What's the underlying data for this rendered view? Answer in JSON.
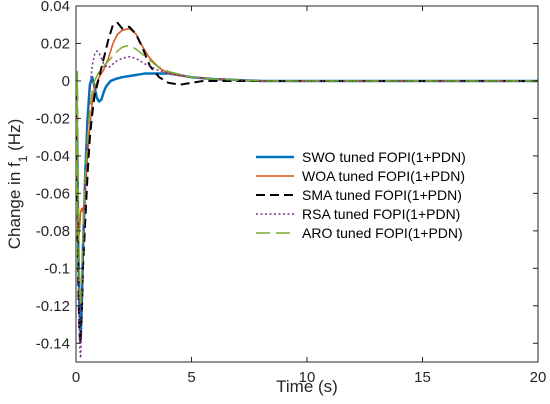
{
  "chart_data": {
    "type": "line",
    "title": "",
    "xlabel": "Time (s)",
    "ylabel_main": "Change in f",
    "ylabel_sub": "1",
    "ylabel_unit": " (Hz)",
    "xlim": [
      0,
      20
    ],
    "ylim": [
      -0.15,
      0.04
    ],
    "xticks": [
      0,
      5,
      10,
      15,
      20
    ],
    "xtick_labels": [
      "0",
      "5",
      "10",
      "15",
      "20"
    ],
    "yticks": [
      0.04,
      0.02,
      0,
      -0.02,
      -0.04,
      -0.06,
      -0.08,
      -0.1,
      -0.12,
      -0.14
    ],
    "ytick_labels": [
      "0.04",
      "0.02",
      "0",
      "-0.02",
      "-0.04",
      "-0.06",
      "-0.08",
      "-0.1",
      "-0.12",
      "-0.14"
    ],
    "grid": false,
    "legend_position": "right",
    "series": [
      {
        "name": "SWO tuned FOPI(1+PDN)",
        "color": "#0072BD",
        "dash": "solid",
        "width": 2.5,
        "x": [
          0,
          0.05,
          0.1,
          0.15,
          0.2,
          0.25,
          0.3,
          0.4,
          0.5,
          0.6,
          0.7,
          0.8,
          0.9,
          1.0,
          1.1,
          1.2,
          1.3,
          1.5,
          1.7,
          2.0,
          2.5,
          3.0,
          4.0,
          5.0,
          6.0,
          8.0,
          10,
          15,
          20
        ],
        "y": [
          0,
          -0.03,
          -0.09,
          -0.12,
          -0.135,
          -0.12,
          -0.09,
          -0.05,
          -0.02,
          -0.002,
          0.002,
          -0.003,
          -0.009,
          -0.011,
          -0.01,
          -0.006,
          -0.003,
          0.0,
          0.001,
          0.002,
          0.003,
          0.004,
          0.004,
          0.002,
          0.001,
          0.0,
          0.0,
          0.0,
          0.0
        ]
      },
      {
        "name": "WOA tuned FOPI(1+PDN)",
        "color": "#D95319",
        "dash": "solid",
        "width": 1.5,
        "x": [
          0,
          0.05,
          0.1,
          0.15,
          0.2,
          0.25,
          0.3,
          0.4,
          0.5,
          0.6,
          0.7,
          0.8,
          1.0,
          1.2,
          1.4,
          1.6,
          1.8,
          2.0,
          2.3,
          2.6,
          2.9,
          3.2,
          3.6,
          4.0,
          5.0,
          6.0,
          8.0,
          10,
          15,
          20
        ],
        "y": [
          0,
          -0.05,
          -0.085,
          -0.08,
          -0.07,
          -0.068,
          -0.07,
          -0.06,
          -0.04,
          -0.025,
          -0.012,
          -0.004,
          0.002,
          0.006,
          0.012,
          0.02,
          0.025,
          0.027,
          0.028,
          0.025,
          0.018,
          0.012,
          0.007,
          0.004,
          0.002,
          0.001,
          0.0,
          0.0,
          0.0,
          0.0
        ]
      },
      {
        "name": "SMA tuned FOPI(1+PDN)",
        "color": "#000000",
        "dash": "dash",
        "width": 2,
        "x": [
          0,
          0.05,
          0.1,
          0.15,
          0.2,
          0.25,
          0.3,
          0.4,
          0.5,
          0.6,
          0.7,
          0.8,
          1.0,
          1.2,
          1.4,
          1.6,
          1.8,
          2.0,
          2.3,
          2.6,
          2.9,
          3.2,
          3.6,
          4.0,
          4.5,
          5.0,
          5.5,
          6.0,
          8.0,
          10,
          15,
          20
        ],
        "y": [
          0,
          -0.06,
          -0.11,
          -0.135,
          -0.14,
          -0.125,
          -0.1,
          -0.075,
          -0.05,
          -0.03,
          -0.018,
          -0.008,
          0.002,
          0.012,
          0.022,
          0.03,
          0.031,
          0.028,
          0.029,
          0.025,
          0.017,
          0.008,
          0.002,
          -0.001,
          -0.002,
          -0.001,
          0.0,
          0.0,
          0.0,
          0.0,
          0.0,
          0.0
        ]
      },
      {
        "name": "RSA tuned FOPI(1+PDN)",
        "color": "#7E2F8E",
        "dash": "dot",
        "width": 1.5,
        "x": [
          0,
          0.05,
          0.1,
          0.15,
          0.2,
          0.25,
          0.3,
          0.4,
          0.5,
          0.6,
          0.7,
          0.8,
          0.9,
          1.0,
          1.2,
          1.4,
          1.6,
          1.8,
          2.0,
          2.3,
          2.6,
          3.0,
          3.5,
          4.0,
          5.0,
          6.0,
          8.0,
          10,
          15,
          20
        ],
        "y": [
          0,
          -0.05,
          -0.1,
          -0.14,
          -0.148,
          -0.13,
          -0.1,
          -0.06,
          -0.025,
          -0.005,
          0.008,
          0.014,
          0.016,
          0.015,
          0.009,
          0.007,
          0.009,
          0.011,
          0.012,
          0.013,
          0.012,
          0.009,
          0.006,
          0.004,
          0.002,
          0.001,
          0.0,
          0.0,
          0.0,
          0.0
        ]
      },
      {
        "name": "ARO tuned FOPI(1+PDN)",
        "color": "#77AC30",
        "dash": "longdash",
        "width": 1.5,
        "x": [
          0,
          0.03,
          0.06,
          0.1,
          0.15,
          0.2,
          0.25,
          0.3,
          0.4,
          0.5,
          0.6,
          0.7,
          0.8,
          1.0,
          1.2,
          1.5,
          1.8,
          2.0,
          2.3,
          2.6,
          3.0,
          3.5,
          4.0,
          5.0,
          6.0,
          8.0,
          10,
          15,
          20
        ],
        "y": [
          0,
          -0.1,
          0.005,
          -0.06,
          -0.11,
          -0.12,
          -0.1,
          -0.08,
          -0.05,
          -0.03,
          -0.015,
          -0.006,
          0.0,
          0.005,
          0.008,
          0.012,
          0.016,
          0.018,
          0.019,
          0.017,
          0.013,
          0.008,
          0.005,
          0.002,
          0.001,
          0.0,
          0.0,
          0.0,
          0.0
        ]
      }
    ]
  }
}
